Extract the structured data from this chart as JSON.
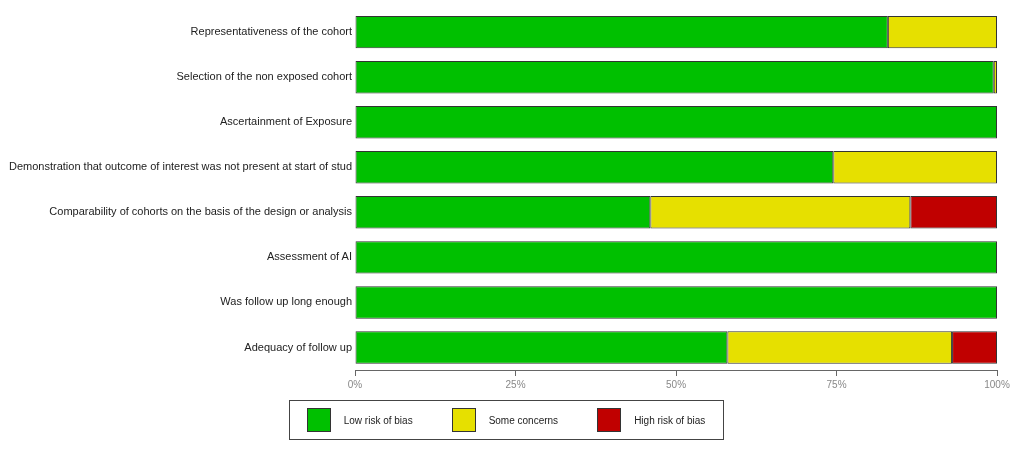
{
  "chart_data": {
    "type": "bar",
    "orientation": "horizontal",
    "stacked": true,
    "legend": "bottom",
    "grid": false,
    "categories": [
      "Representativeness of the cohort",
      "Selection of the non exposed cohort",
      "Ascertainment of Exposure",
      "Demonstration that outcome of interest was not present at start of stud",
      "Comparability of cohorts on the basis of the design or analysis",
      "Assessment of AI",
      "Was follow up long enough",
      "Adequacy of follow up"
    ],
    "series": [
      {
        "name": "Low risk of bias",
        "color": "#00c000",
        "values": [
          83,
          99.5,
          100,
          74.5,
          46,
          100,
          100,
          58
        ]
      },
      {
        "name": "Some concerns",
        "color": "#e6e000",
        "values": [
          17,
          0.5,
          0,
          25.5,
          40.5,
          0,
          0,
          35
        ]
      },
      {
        "name": "High risk of bias",
        "color": "#c00000",
        "values": [
          0,
          0,
          0,
          0,
          13.5,
          0,
          0,
          7
        ]
      }
    ],
    "xlim": [
      0,
      100
    ],
    "xticks": [
      {
        "value": 0,
        "label": "0%"
      },
      {
        "value": 25,
        "label": "25%"
      },
      {
        "value": 50,
        "label": "50%"
      },
      {
        "value": 75,
        "label": "75%"
      },
      {
        "value": 100,
        "label": "100%"
      }
    ]
  }
}
